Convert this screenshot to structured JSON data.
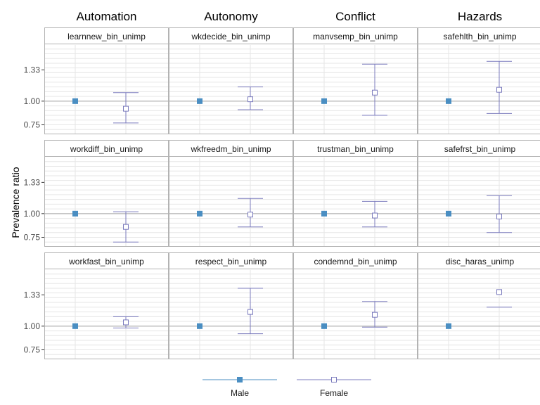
{
  "chart_data": {
    "type": "scatter",
    "title": "",
    "ylabel": "Prevalence ratio",
    "xlabel": "",
    "ylim": [
      0.65,
      1.6
    ],
    "yticks": [
      {
        "value": 0.75,
        "label": "0.75"
      },
      {
        "value": 1.0,
        "label": "1.00"
      },
      {
        "value": 1.33,
        "label": "1.33"
      }
    ],
    "reference_line": 1.0,
    "grid": true,
    "categories": [
      "Male",
      "Female"
    ],
    "columns": [
      "Automation",
      "Autonomy",
      "Conflict",
      "Hazards"
    ],
    "legend": {
      "position": "bottom",
      "entries": [
        {
          "name": "Male",
          "marker": "filled-square",
          "color": "#4a8ec2"
        },
        {
          "name": "Female",
          "marker": "open-square",
          "color": "#7b7bbd"
        }
      ]
    },
    "colors": {
      "male": "#4a8ec2",
      "female": "#7b7bbd",
      "panel_border": "#b3b3b3",
      "grid": "#e6e6e6",
      "reference": "#a6a6a6"
    },
    "panels": [
      {
        "column": "Automation",
        "label": "learnnew_bin_unimp",
        "male": 1.0,
        "female": 0.92,
        "female_low": 0.77,
        "female_high": 1.09
      },
      {
        "column": "Autonomy",
        "label": "wkdecide_bin_unimp",
        "male": 1.0,
        "female": 1.02,
        "female_low": 0.91,
        "female_high": 1.15
      },
      {
        "column": "Conflict",
        "label": "manvsemp_bin_unimp",
        "male": 1.0,
        "female": 1.09,
        "female_low": 0.85,
        "female_high": 1.39
      },
      {
        "column": "Hazards",
        "label": "safehlth_bin_unimp",
        "male": 1.0,
        "female": 1.12,
        "female_low": 0.87,
        "female_high": 1.42
      },
      {
        "column": "Automation",
        "label": "workdiff_bin_unimp",
        "male": 1.0,
        "female": 0.86,
        "female_low": 0.7,
        "female_high": 1.02
      },
      {
        "column": "Autonomy",
        "label": "wkfreedm_bin_unimp",
        "male": 1.0,
        "female": 0.99,
        "female_low": 0.86,
        "female_high": 1.16
      },
      {
        "column": "Conflict",
        "label": "trustman_bin_unimp",
        "male": 1.0,
        "female": 0.98,
        "female_low": 0.86,
        "female_high": 1.13
      },
      {
        "column": "Hazards",
        "label": "safefrst_bin_unimp",
        "male": 1.0,
        "female": 0.97,
        "female_low": 0.8,
        "female_high": 1.19
      },
      {
        "column": "Automation",
        "label": "workfast_bin_unimp",
        "male": 1.0,
        "female": 1.04,
        "female_low": 0.98,
        "female_high": 1.1
      },
      {
        "column": "Autonomy",
        "label": "respect_bin_unimp",
        "male": 1.0,
        "female": 1.15,
        "female_low": 0.92,
        "female_high": 1.4
      },
      {
        "column": "Conflict",
        "label": "condemnd_bin_unimp",
        "male": 1.0,
        "female": 1.12,
        "female_low": 0.99,
        "female_high": 1.26
      },
      {
        "column": "Hazards",
        "label": "disc_haras_unimp",
        "male": 1.0,
        "female": 1.36,
        "female_low": 1.2,
        "female_high": null
      }
    ]
  }
}
